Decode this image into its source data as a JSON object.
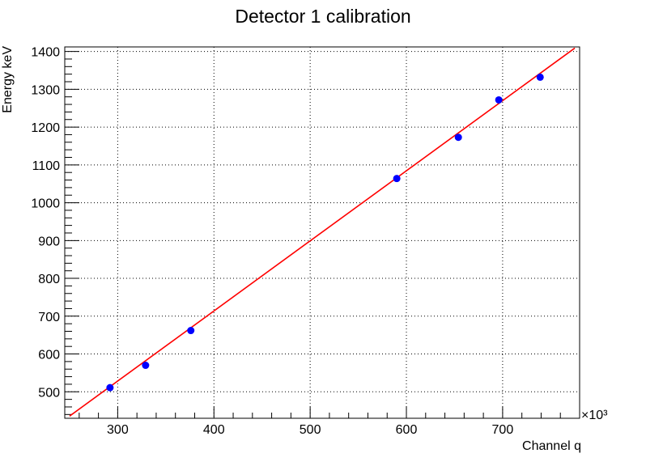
{
  "chart_data": {
    "type": "scatter",
    "title": "Detector 1 calibration",
    "xlabel": "Channel q",
    "ylabel": "Energy keV",
    "x_multiplier_label": "×10³",
    "xlim": [
      245,
      780
    ],
    "ylim": [
      430,
      1412
    ],
    "x_major_ticks": [
      300,
      400,
      500,
      600,
      700
    ],
    "x_tick_labels": [
      "300",
      "400",
      "500",
      "600",
      "700"
    ],
    "y_major_ticks": [
      500,
      600,
      700,
      800,
      900,
      1000,
      1100,
      1200,
      1300,
      1400
    ],
    "y_tick_labels": [
      "500",
      "600",
      "700",
      "800",
      "900",
      "1000",
      "1100",
      "1200",
      "1300",
      "1400"
    ],
    "grid": true,
    "series": [
      {
        "kind": "points",
        "color": "#0000ff",
        "points": [
          {
            "x": 292,
            "y": 511
          },
          {
            "x": 329,
            "y": 570
          },
          {
            "x": 376,
            "y": 662
          },
          {
            "x": 590,
            "y": 1064
          },
          {
            "x": 654,
            "y": 1173
          },
          {
            "x": 696,
            "y": 1272
          },
          {
            "x": 739,
            "y": 1332
          }
        ]
      },
      {
        "kind": "fit-line",
        "color": "#ff0000",
        "x_range": [
          250,
          775
        ],
        "slope": 1.8537,
        "intercept": -27.7
      }
    ]
  }
}
